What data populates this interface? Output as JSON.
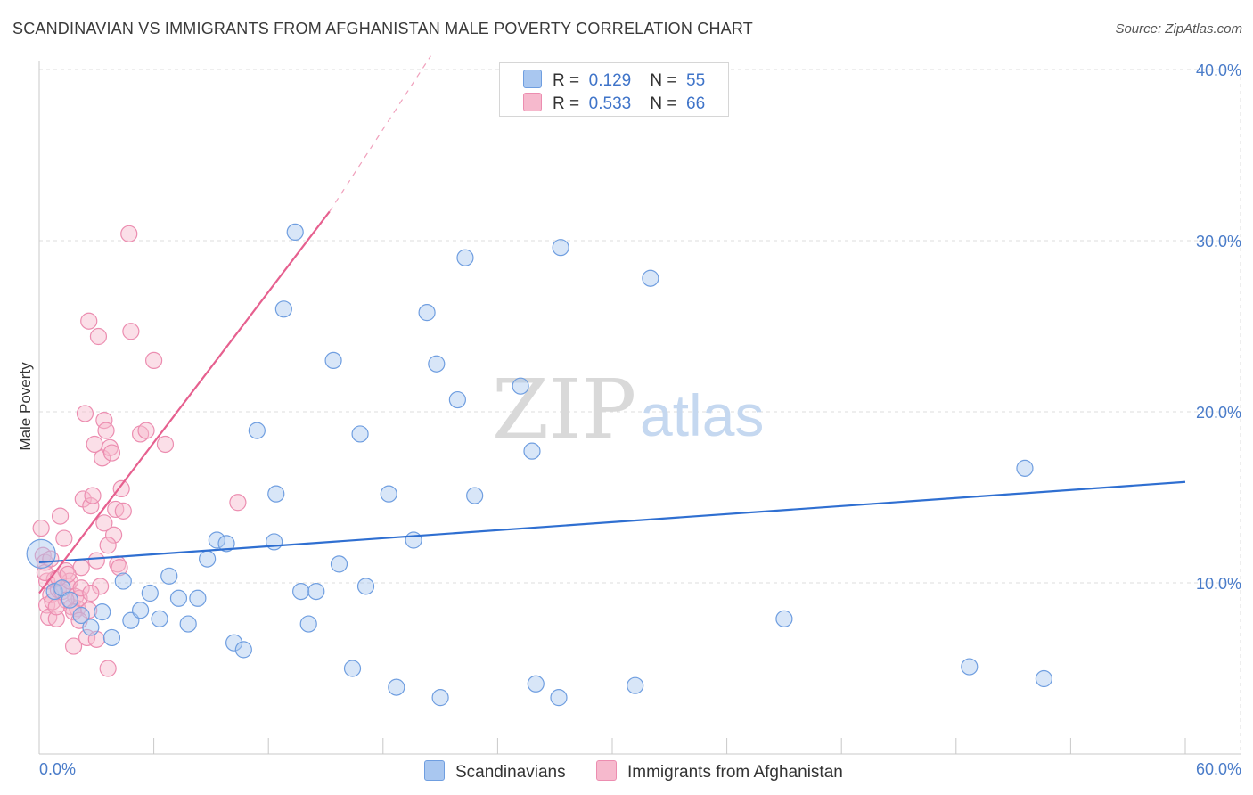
{
  "title": "SCANDINAVIAN VS IMMIGRANTS FROM AFGHANISTAN MALE POVERTY CORRELATION CHART",
  "source": "Source: ZipAtlas.com",
  "watermark": {
    "zip": "ZIP",
    "atlas": "atlas"
  },
  "legend_stats": [
    {
      "r_label": "R =",
      "r_value": "0.129",
      "n_label": "N =",
      "n_value": "55"
    },
    {
      "r_label": "R =",
      "r_value": "0.533",
      "n_label": "N =",
      "n_value": "66"
    }
  ],
  "chart_data": {
    "type": "scatter",
    "title": "SCANDINAVIAN VS IMMIGRANTS FROM AFGHANISTAN MALE POVERTY CORRELATION CHART",
    "xlabel": "",
    "ylabel": "Male Poverty",
    "xlim": [
      0,
      60
    ],
    "ylim": [
      0,
      40
    ],
    "x_tick_labels": [
      "0.0%",
      "60.0%"
    ],
    "y_tick_labels": [
      "10.0%",
      "20.0%",
      "30.0%",
      "40.0%"
    ],
    "y_ticks": [
      10,
      20,
      30,
      40
    ],
    "grid": true,
    "colors": {
      "blue_fill": "#a9c7f0",
      "blue_stroke": "#6f9ee0",
      "blue_line": "#2f6fd1",
      "pink_fill": "#f6b9cd",
      "pink_stroke": "#ec8db0",
      "pink_line": "#e6608f",
      "grid": "#dddddd",
      "axis": "#c8c8c8"
    },
    "series": [
      {
        "name": "Scandinavians",
        "r": 0.129,
        "n": 55,
        "trend": {
          "x0": 0,
          "y0": 11.2,
          "x1": 60,
          "y1": 15.9,
          "dashed_to": null
        },
        "points": [
          [
            0.1,
            11.7,
            28
          ],
          [
            0.8,
            9.5,
            14
          ],
          [
            1.2,
            9.7,
            14
          ],
          [
            1.6,
            9.0,
            14
          ],
          [
            2.2,
            8.1,
            14
          ],
          [
            2.7,
            7.4,
            14
          ],
          [
            3.3,
            8.3,
            14
          ],
          [
            3.8,
            6.8,
            14
          ],
          [
            4.4,
            10.1,
            14
          ],
          [
            4.8,
            7.8,
            14
          ],
          [
            5.3,
            8.4,
            14
          ],
          [
            5.8,
            9.4,
            14
          ],
          [
            6.3,
            7.9,
            14
          ],
          [
            6.8,
            10.4,
            14
          ],
          [
            7.3,
            9.1,
            14
          ],
          [
            7.8,
            7.6,
            14
          ],
          [
            8.3,
            9.1,
            14
          ],
          [
            8.8,
            11.4,
            14
          ],
          [
            9.3,
            12.5,
            14
          ],
          [
            9.8,
            12.3,
            14
          ],
          [
            10.2,
            6.5,
            14
          ],
          [
            10.7,
            6.1,
            14
          ],
          [
            11.4,
            18.9,
            14
          ],
          [
            12.3,
            12.4,
            14
          ],
          [
            12.4,
            15.2,
            14
          ],
          [
            12.8,
            26.0,
            14
          ],
          [
            13.4,
            30.5,
            14
          ],
          [
            13.7,
            9.5,
            14
          ],
          [
            14.1,
            7.6,
            14
          ],
          [
            14.5,
            9.5,
            14
          ],
          [
            15.4,
            23.0,
            14
          ],
          [
            15.7,
            11.1,
            14
          ],
          [
            16.4,
            5.0,
            14
          ],
          [
            16.8,
            18.7,
            14
          ],
          [
            17.1,
            9.8,
            14
          ],
          [
            18.3,
            15.2,
            14
          ],
          [
            18.7,
            3.9,
            14
          ],
          [
            19.6,
            12.5,
            14
          ],
          [
            20.3,
            25.8,
            14
          ],
          [
            20.8,
            22.8,
            14
          ],
          [
            21.0,
            3.3,
            14
          ],
          [
            21.9,
            20.7,
            14
          ],
          [
            22.3,
            29.0,
            14
          ],
          [
            22.8,
            15.1,
            14
          ],
          [
            25.2,
            21.5,
            14
          ],
          [
            25.8,
            17.7,
            14
          ],
          [
            26.0,
            4.1,
            14
          ],
          [
            27.2,
            3.3,
            14
          ],
          [
            27.3,
            29.6,
            14
          ],
          [
            31.2,
            4.0,
            14
          ],
          [
            32.0,
            27.8,
            14
          ],
          [
            39.0,
            7.9,
            14
          ],
          [
            48.7,
            5.1,
            14
          ],
          [
            51.6,
            16.7,
            14
          ],
          [
            52.6,
            4.4,
            14
          ]
        ]
      },
      {
        "name": "Immigrants from Afghanistan",
        "r": 0.533,
        "n": 66,
        "trend": {
          "x0": 0,
          "y0": 9.4,
          "x1": 15.2,
          "y1": 31.7,
          "dashed_to": [
            20.5,
            40.8
          ]
        },
        "points": [
          [
            0.1,
            13.2,
            14
          ],
          [
            0.2,
            11.6,
            14
          ],
          [
            0.3,
            11.2,
            14
          ],
          [
            0.4,
            10.1,
            14
          ],
          [
            0.4,
            8.7,
            14
          ],
          [
            0.5,
            8.0,
            14
          ],
          [
            0.6,
            9.3,
            14
          ],
          [
            0.7,
            8.9,
            14
          ],
          [
            0.8,
            10.2,
            14
          ],
          [
            0.9,
            7.9,
            14
          ],
          [
            1.0,
            9.6,
            14
          ],
          [
            1.1,
            13.9,
            14
          ],
          [
            1.2,
            9.5,
            14
          ],
          [
            1.3,
            12.6,
            14
          ],
          [
            1.4,
            10.7,
            14
          ],
          [
            1.5,
            9.8,
            14
          ],
          [
            1.6,
            10.1,
            14
          ],
          [
            1.7,
            8.6,
            14
          ],
          [
            1.8,
            6.3,
            14
          ],
          [
            1.9,
            9.2,
            14
          ],
          [
            2.0,
            8.5,
            14
          ],
          [
            2.1,
            9.1,
            14
          ],
          [
            2.2,
            10.9,
            14
          ],
          [
            2.3,
            14.9,
            14
          ],
          [
            2.4,
            19.9,
            14
          ],
          [
            2.5,
            6.8,
            14
          ],
          [
            2.6,
            25.3,
            14
          ],
          [
            2.7,
            14.5,
            14
          ],
          [
            2.8,
            15.1,
            14
          ],
          [
            2.9,
            18.1,
            14
          ],
          [
            3.0,
            6.7,
            14
          ],
          [
            3.1,
            24.4,
            14
          ],
          [
            3.2,
            9.8,
            14
          ],
          [
            3.3,
            17.3,
            14
          ],
          [
            3.4,
            19.5,
            14
          ],
          [
            3.5,
            18.9,
            14
          ],
          [
            3.6,
            5.0,
            14
          ],
          [
            3.7,
            17.9,
            14
          ],
          [
            3.8,
            17.6,
            14
          ],
          [
            3.9,
            12.8,
            14
          ],
          [
            4.0,
            14.3,
            14
          ],
          [
            4.1,
            11.1,
            14
          ],
          [
            4.3,
            15.5,
            14
          ],
          [
            4.4,
            14.2,
            14
          ],
          [
            4.7,
            30.4,
            14
          ],
          [
            4.8,
            24.7,
            14
          ],
          [
            5.3,
            18.7,
            14
          ],
          [
            5.6,
            18.9,
            14
          ],
          [
            6.0,
            23.0,
            14
          ],
          [
            6.6,
            18.1,
            14
          ],
          [
            10.4,
            14.7,
            14
          ],
          [
            0.3,
            10.6,
            14
          ],
          [
            0.6,
            11.4,
            14
          ],
          [
            1.0,
            10.3,
            14
          ],
          [
            1.4,
            9.0,
            14
          ],
          [
            1.8,
            8.3,
            14
          ],
          [
            2.2,
            9.7,
            14
          ],
          [
            2.6,
            8.4,
            14
          ],
          [
            3.0,
            11.3,
            14
          ],
          [
            3.4,
            13.5,
            14
          ],
          [
            0.9,
            8.6,
            14
          ],
          [
            1.5,
            10.5,
            14
          ],
          [
            2.1,
            7.8,
            14
          ],
          [
            2.7,
            9.4,
            14
          ],
          [
            3.6,
            12.2,
            14
          ],
          [
            4.2,
            10.9,
            14
          ]
        ]
      }
    ]
  }
}
